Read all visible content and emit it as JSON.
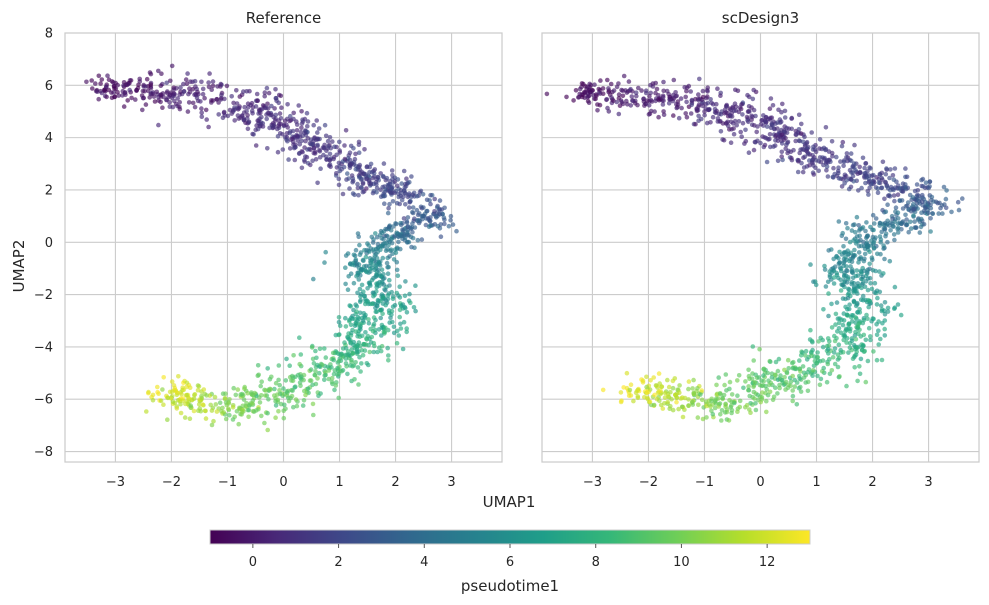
{
  "chart_data": {
    "type": "scatter",
    "figure": {
      "xlabel": "UMAP1",
      "ylabel": "UMAP2",
      "colorbar": {
        "label": "pseudotime1",
        "range": [
          -1,
          13
        ],
        "ticks": [
          0,
          2,
          4,
          6,
          8,
          10,
          12
        ],
        "tick_labels": [
          "0",
          "2",
          "4",
          "6",
          "8",
          "10",
          "12"
        ],
        "colormap": "viridis",
        "orientation": "horizontal",
        "placement": "bottom"
      },
      "sharey": true,
      "grid": true
    },
    "colormap_stops": [
      "#440154",
      "#482878",
      "#3e4989",
      "#31688e",
      "#26828e",
      "#1f9e89",
      "#35b779",
      "#6ece58",
      "#b5de2b",
      "#fde725"
    ],
    "xlim": [
      -3.9,
      3.9
    ],
    "ylim": [
      -8.4,
      8.0
    ],
    "x_ticks": [
      -3,
      -2,
      -1,
      0,
      1,
      2,
      3
    ],
    "x_tick_labels": [
      "−3",
      "−2",
      "−1",
      "0",
      "1",
      "2",
      "3"
    ],
    "y_ticks": [
      -8,
      -6,
      -4,
      -2,
      0,
      2,
      4,
      6,
      8
    ],
    "y_tick_labels": [
      "−8",
      "−6",
      "−4",
      "−2",
      "0",
      "2",
      "4",
      "6",
      "8"
    ],
    "panels": [
      {
        "title": "Reference",
        "point_count": 1600,
        "random_seed": 7,
        "trajectory": [
          {
            "x": -3.2,
            "y": 5.9,
            "t": -0.8,
            "spread": 0.35
          },
          {
            "x": -2.2,
            "y": 5.9,
            "t": 0.0,
            "spread": 0.55
          },
          {
            "x": -1.5,
            "y": 5.5,
            "t": 0.3,
            "spread": 0.65
          },
          {
            "x": -0.5,
            "y": 5.1,
            "t": 0.7,
            "spread": 0.6
          },
          {
            "x": 0.3,
            "y": 4.0,
            "t": 1.0,
            "spread": 0.55
          },
          {
            "x": 1.2,
            "y": 2.8,
            "t": 1.4,
            "spread": 0.45
          },
          {
            "x": 2.3,
            "y": 1.7,
            "t": 2.2,
            "spread": 0.45
          },
          {
            "x": 2.6,
            "y": 0.8,
            "t": 3.0,
            "spread": 0.4
          },
          {
            "x": 1.8,
            "y": 0.2,
            "t": 4.5,
            "spread": 0.4
          },
          {
            "x": 1.5,
            "y": -1.0,
            "t": 5.5,
            "spread": 0.45
          },
          {
            "x": 1.7,
            "y": -2.6,
            "t": 6.8,
            "spread": 0.5
          },
          {
            "x": 1.3,
            "y": -4.2,
            "t": 8.0,
            "spread": 0.55
          },
          {
            "x": 0.3,
            "y": -5.4,
            "t": 9.2,
            "spread": 0.65
          },
          {
            "x": -0.7,
            "y": -6.3,
            "t": 10.0,
            "spread": 0.55
          },
          {
            "x": -1.6,
            "y": -6.1,
            "t": 11.5,
            "spread": 0.55
          },
          {
            "x": -2.1,
            "y": -5.4,
            "t": 13.0,
            "spread": 0.4
          }
        ]
      },
      {
        "title": "scDesign3",
        "point_count": 1600,
        "random_seed": 23,
        "trajectory": [
          {
            "x": -3.3,
            "y": 5.7,
            "t": -0.8,
            "spread": 0.35
          },
          {
            "x": -2.3,
            "y": 5.6,
            "t": 0.0,
            "spread": 0.6
          },
          {
            "x": -1.3,
            "y": 5.4,
            "t": 0.3,
            "spread": 0.65
          },
          {
            "x": -0.3,
            "y": 4.8,
            "t": 0.7,
            "spread": 0.6
          },
          {
            "x": 0.6,
            "y": 3.8,
            "t": 1.0,
            "spread": 0.55
          },
          {
            "x": 1.4,
            "y": 2.8,
            "t": 1.4,
            "spread": 0.5
          },
          {
            "x": 2.6,
            "y": 2.0,
            "t": 2.2,
            "spread": 0.45
          },
          {
            "x": 3.1,
            "y": 1.5,
            "t": 3.0,
            "spread": 0.4
          },
          {
            "x": 2.0,
            "y": 0.4,
            "t": 4.5,
            "spread": 0.45
          },
          {
            "x": 1.5,
            "y": -1.0,
            "t": 5.5,
            "spread": 0.45
          },
          {
            "x": 1.9,
            "y": -2.6,
            "t": 6.8,
            "spread": 0.5
          },
          {
            "x": 1.4,
            "y": -4.1,
            "t": 8.0,
            "spread": 0.55
          },
          {
            "x": 0.4,
            "y": -5.3,
            "t": 9.2,
            "spread": 0.65
          },
          {
            "x": -0.8,
            "y": -6.2,
            "t": 10.0,
            "spread": 0.55
          },
          {
            "x": -1.7,
            "y": -5.9,
            "t": 11.5,
            "spread": 0.55
          },
          {
            "x": -2.3,
            "y": -5.4,
            "t": 13.0,
            "spread": 0.4
          }
        ]
      }
    ]
  }
}
